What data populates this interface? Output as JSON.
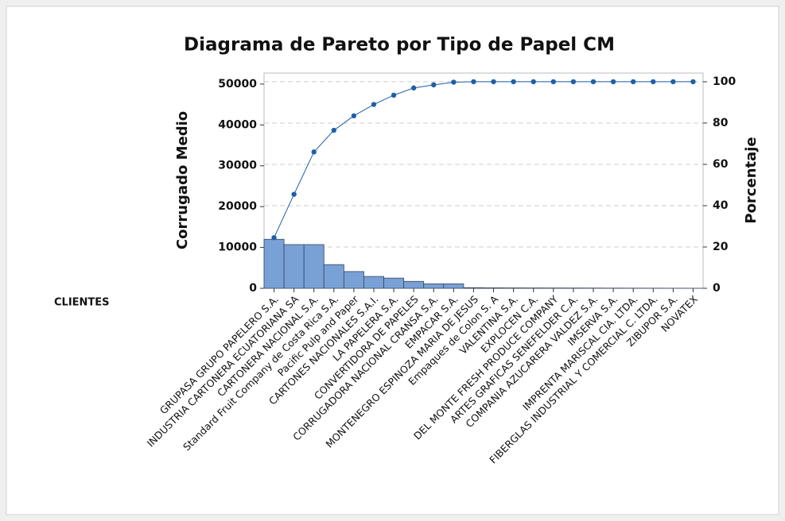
{
  "chart_data": {
    "type": "pareto",
    "title": "Diagrama de Pareto por Tipo de Papel CM",
    "ylabel": "Corrugado Medio",
    "y2label": "Porcentaje",
    "xlabel": "CLIENTES",
    "categories": [
      "GRUPASA GRUPO PAPELERO S.A.",
      "INDUSTRIA CARTONERA ECUATORIANA SA",
      "CARTONERA NACIONAL S.A.",
      "Standard Fruit Company de Costa Rica S.A.",
      "Pacific Pulp and Paper",
      "CARTONES NACIONALES S.A.I.",
      "LA PAPELERA S.A.",
      "CONVERTIDORA DE PAPELES",
      "CORRUGADORA NACIONAL CRANSA S.A.",
      "EMPACAR S.A.",
      "MONTENEGRO ESPINOZA MARIA DE JESUS",
      "Empaques de Colon S. A",
      "VALENTINA S.A.",
      "EXPLOCEN C.A.",
      "DEL MONTE FRESH PRODUCE COMPANY",
      "ARTES GRAFICAS SENEFELDER C.A.",
      "COMPANIA AZUCARERA VALDEZ S.A.",
      "IMSERVA S.A.",
      "IMPRENTA MARISCAL CIA. LTDA.",
      "FIBERGLAS INDUSTRIAL Y COMERCIAL C. LTDA.",
      "ZIBUPOR S.A.",
      "NOVATEX"
    ],
    "series": [
      {
        "name": "Corrugado Medio",
        "color": "#7aa1d6",
        "values": [
          12000,
          10700,
          10700,
          5800,
          4100,
          2900,
          2500,
          1700,
          1100,
          1100,
          150,
          120,
          100,
          90,
          80,
          70,
          60,
          50,
          40,
          30,
          20,
          10
        ]
      },
      {
        "name": "Porcentaje",
        "color": "#1f5fa8",
        "axis": "y2",
        "values": [
          24.5,
          45.5,
          66,
          76.5,
          83.5,
          89,
          93.5,
          97,
          98.5,
          99.8,
          100,
          100,
          100,
          100,
          100,
          100,
          100,
          100,
          100,
          100,
          100,
          100
        ]
      }
    ],
    "ylim": [
      0,
      52700
    ],
    "yticks": [
      0,
      10000,
      20000,
      30000,
      40000,
      50000
    ],
    "y2lim": [
      0,
      104.2
    ],
    "y2ticks": [
      0,
      20,
      40,
      60,
      80,
      100
    ],
    "grid": true
  }
}
